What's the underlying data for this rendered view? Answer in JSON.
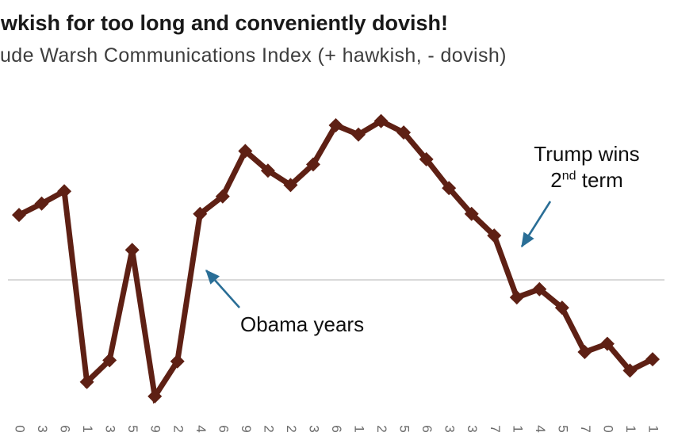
{
  "header": {
    "title": "wkish for too long and conveniently dovish!",
    "subtitle": "ude Warsh Communications Index (+ hawkish, - dovish)"
  },
  "annotations": {
    "obama": {
      "label": "Obama years"
    },
    "trump": {
      "line1": "Trump wins",
      "line2_num": "2",
      "line2_sup": "nd",
      "line2_rest": " term"
    }
  },
  "colors": {
    "line": "#5e2014",
    "gridline": "#d9d9d9",
    "arrow": "#2a6e96",
    "title_text": "#191919",
    "subtitle_text": "#3d3d3d",
    "tick_text": "#6a6a6a"
  },
  "chart_data": {
    "type": "line",
    "title": "wkish for too long and conveniently dovish!",
    "subtitle": "ude Warsh Communications Index (+ hawkish, - dovish)",
    "categories": [
      "0",
      "3",
      "6",
      "1",
      "3",
      "5",
      "9",
      "2",
      "4",
      "6",
      "9",
      "2",
      "2",
      "3",
      "6",
      "1",
      "2",
      "5",
      "6",
      "3",
      "3",
      "7",
      "1",
      "4",
      "5",
      "7",
      "0",
      "1",
      "1"
    ],
    "values": [
      0.63,
      0.74,
      0.86,
      -0.99,
      -0.78,
      0.29,
      -1.13,
      -0.79,
      0.64,
      0.81,
      1.25,
      1.06,
      0.92,
      1.12,
      1.5,
      1.41,
      1.54,
      1.43,
      1.17,
      0.89,
      0.64,
      0.43,
      -0.17,
      -0.09,
      -0.27,
      -0.7,
      -0.62,
      -0.88,
      -0.77
    ],
    "series_name": "Warsh Communications Index",
    "xlabel": "",
    "ylabel": "",
    "ylim": [
      -1.6,
      1.6
    ],
    "zero_gridline": true,
    "grid": "horizontal-zero-only",
    "legend": "none",
    "marker": "diamond",
    "line_color": "#5e2014",
    "annotations": [
      {
        "text": "Obama years",
        "arrow_points_to": "value at index 7 area (rise out of dovish dip)"
      },
      {
        "text": "Trump wins 2nd term",
        "arrow_points_to": "decline at index 22 crossing below zero"
      }
    ]
  }
}
